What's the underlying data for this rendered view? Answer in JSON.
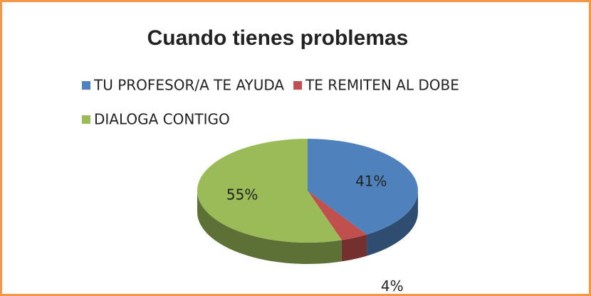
{
  "chart_data": {
    "type": "pie",
    "title": "Cuando tienes problemas",
    "categories": [
      "TU PROFESOR/A TE AYUDA",
      "TE REMITEN AL DOBE",
      "DIALOGA CONTIGO"
    ],
    "values": [
      41,
      4,
      55
    ],
    "value_labels": [
      "41%",
      "4%",
      "55%"
    ],
    "colors": [
      "#4f81bd",
      "#c0504d",
      "#9bbb59"
    ],
    "legend": "top"
  }
}
